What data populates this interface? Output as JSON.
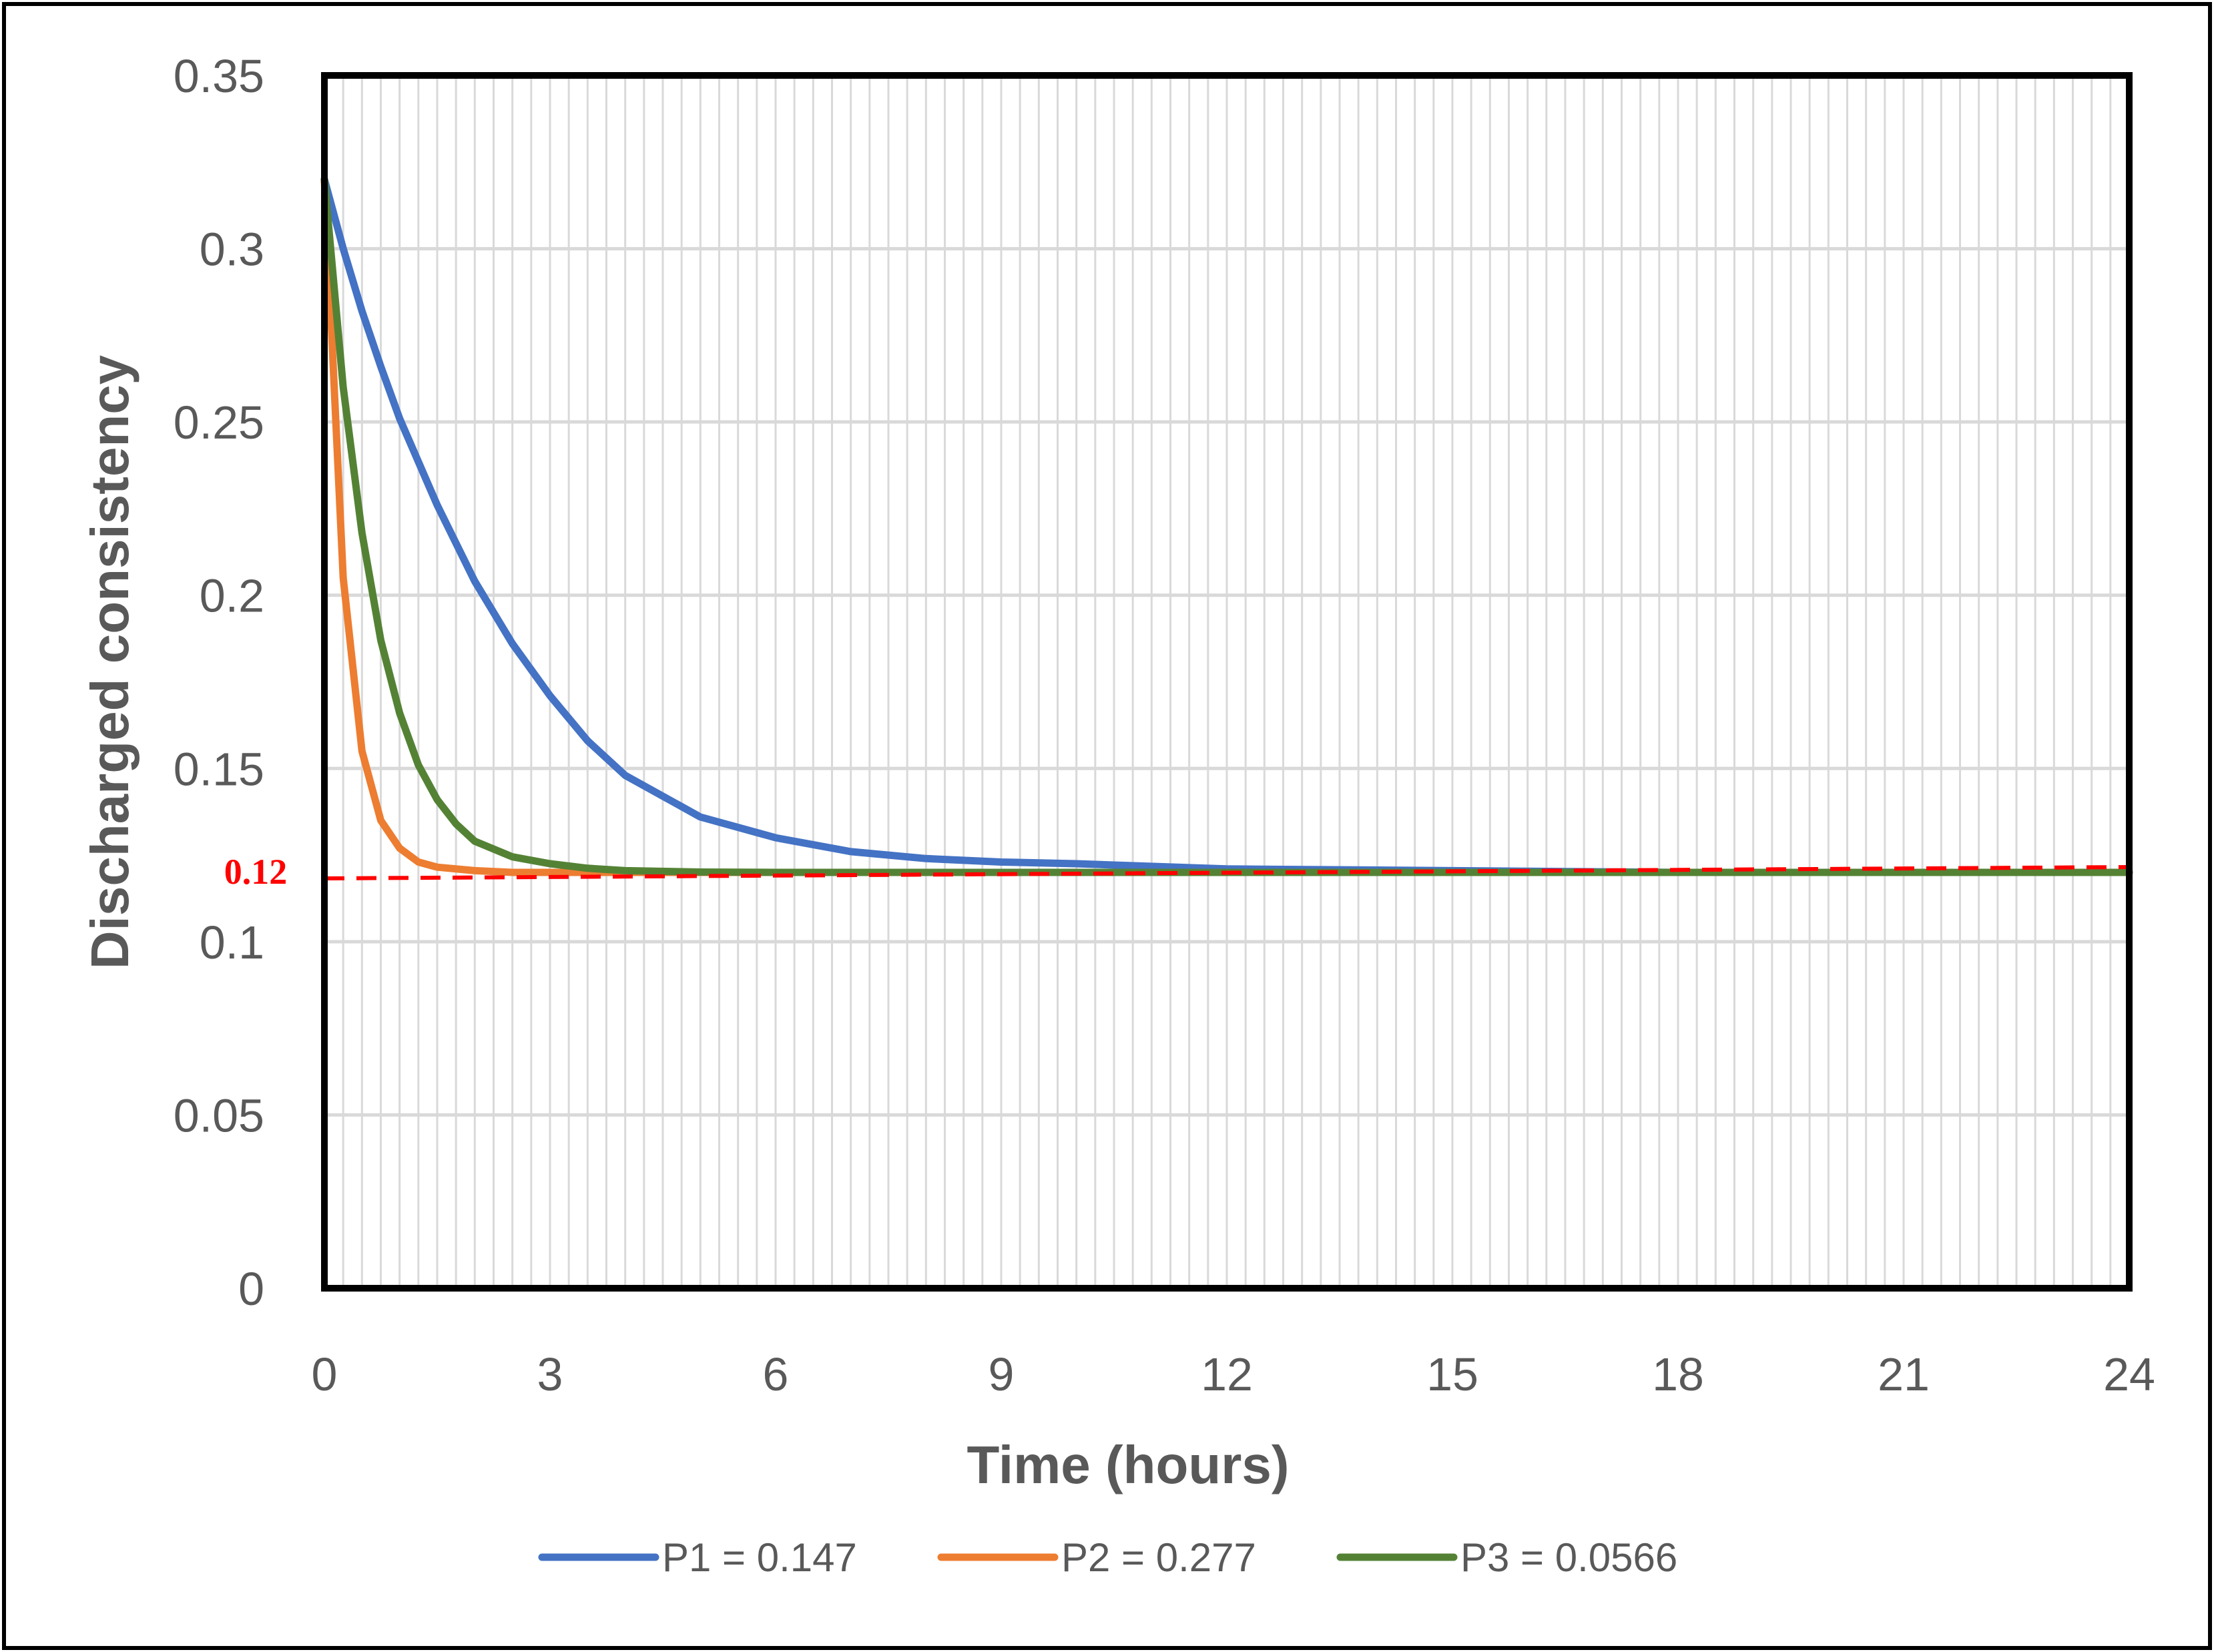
{
  "chart_data": {
    "type": "line",
    "title": "",
    "xlabel": "Time (hours)",
    "ylabel": "Discharged consistency",
    "xlim": [
      0,
      24
    ],
    "ylim": [
      0,
      0.35
    ],
    "x_ticks": [
      "0",
      "3",
      "6",
      "9",
      "12",
      "15",
      "18",
      "21",
      "24"
    ],
    "y_ticks": [
      "0",
      "0.05",
      "0.1",
      "0.15",
      "0.2",
      "0.25",
      "0.3",
      "0.35"
    ],
    "grid": true,
    "legend": "bottom",
    "reference_line": {
      "y": 0.12,
      "label": "0.12",
      "color": "#ff0000",
      "style": "dashed"
    },
    "series": [
      {
        "name": "P1 = 0.147",
        "color": "#4472c4",
        "x": [
          0,
          0.25,
          0.5,
          0.75,
          1,
          1.5,
          2,
          2.5,
          3,
          3.5,
          4,
          5,
          6,
          7,
          8,
          9,
          10,
          12,
          15,
          18,
          21,
          24
        ],
        "y": [
          0.32,
          0.3,
          0.282,
          0.266,
          0.251,
          0.226,
          0.204,
          0.186,
          0.171,
          0.158,
          0.148,
          0.136,
          0.13,
          0.126,
          0.124,
          0.123,
          0.1225,
          0.121,
          0.1205,
          0.12,
          0.12,
          0.12
        ]
      },
      {
        "name": "P2 = 0.277",
        "color": "#ed7d31",
        "x": [
          0,
          0.25,
          0.5,
          0.75,
          1,
          1.25,
          1.5,
          2,
          2.5,
          3,
          4,
          6,
          9,
          12,
          15,
          18,
          21,
          24
        ],
        "y": [
          0.32,
          0.205,
          0.155,
          0.135,
          0.127,
          0.123,
          0.1215,
          0.1205,
          0.12,
          0.12,
          0.12,
          0.12,
          0.12,
          0.12,
          0.12,
          0.12,
          0.12,
          0.12
        ]
      },
      {
        "name": "P3 = 0.0566",
        "color": "#548235",
        "x": [
          0,
          0.25,
          0.5,
          0.75,
          1,
          1.25,
          1.5,
          1.75,
          2,
          2.5,
          3,
          3.5,
          4,
          5,
          6,
          9,
          12,
          15,
          18,
          21,
          24
        ],
        "y": [
          0.32,
          0.26,
          0.218,
          0.187,
          0.166,
          0.151,
          0.141,
          0.134,
          0.129,
          0.1245,
          0.1225,
          0.1212,
          0.1205,
          0.1201,
          0.12,
          0.12,
          0.12,
          0.12,
          0.12,
          0.12,
          0.12
        ]
      }
    ]
  }
}
